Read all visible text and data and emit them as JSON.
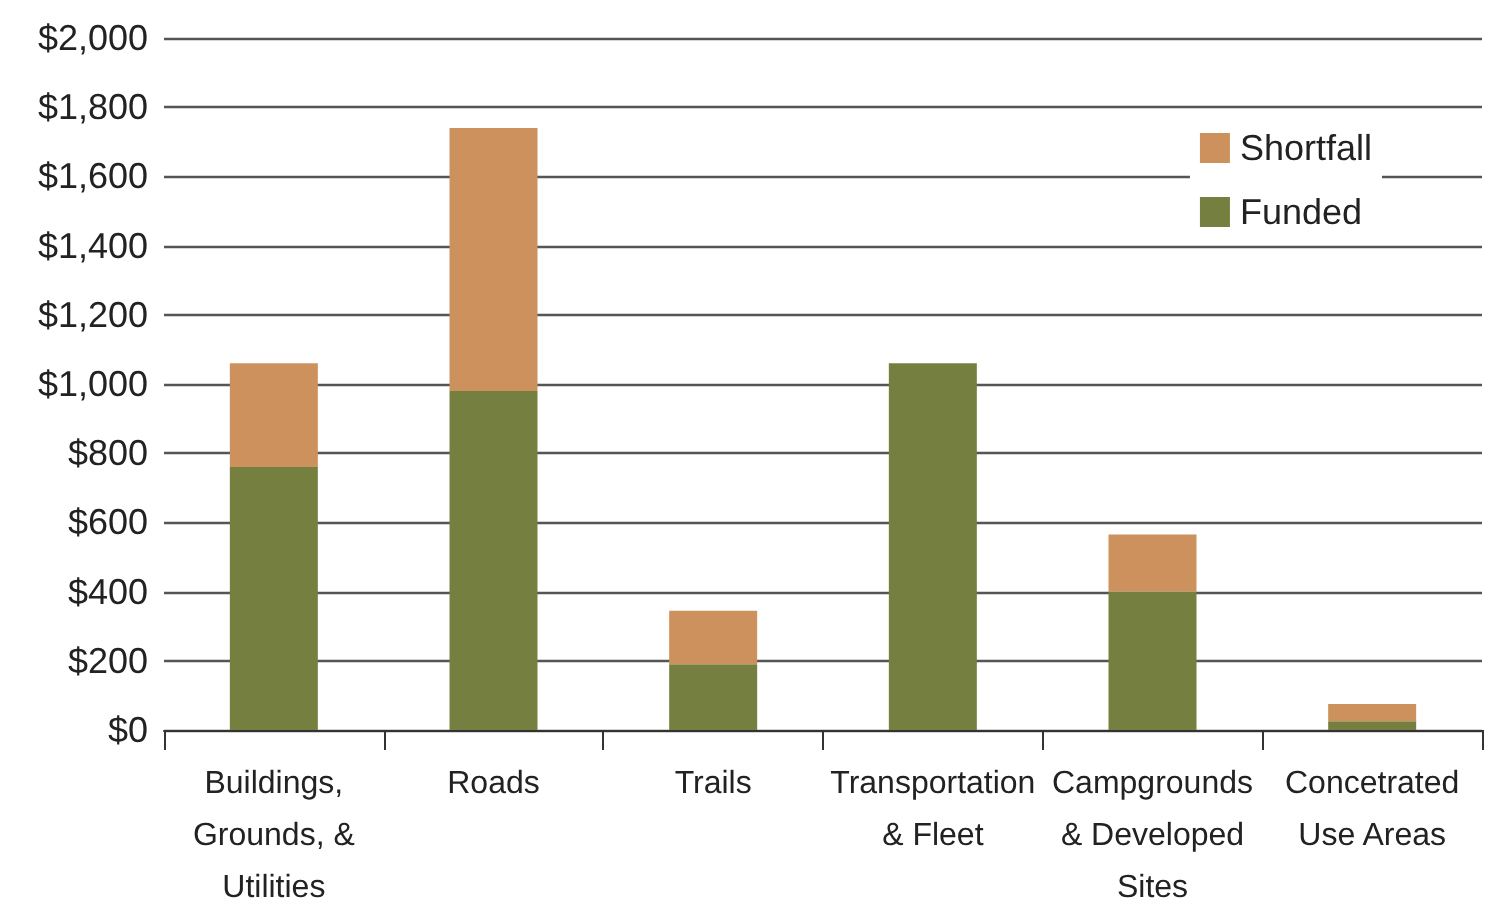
{
  "chart_data": {
    "type": "bar",
    "stacked": true,
    "categories": [
      "Buildings,\nGrounds, &\nUtilities",
      "Roads",
      "Trails",
      "Transportation\n& Fleet",
      "Campgrounds\n& Developed\nSites",
      "Concetrated\nUse Areas"
    ],
    "series": [
      {
        "name": "Funded",
        "color": "#758040",
        "values": [
          760,
          980,
          190,
          1060,
          400,
          25
        ]
      },
      {
        "name": "Shortfall",
        "color": "#cc915c",
        "values": [
          300,
          760,
          155,
          0,
          165,
          50
        ]
      }
    ],
    "ylim": [
      0,
      2000
    ],
    "yticks": [
      {
        "value": 0,
        "label": "$0"
      },
      {
        "value": 200,
        "label": "$200"
      },
      {
        "value": 400,
        "label": "$400"
      },
      {
        "value": 600,
        "label": "$600"
      },
      {
        "value": 800,
        "label": "$800"
      },
      {
        "value": 1000,
        "label": "$1,000"
      },
      {
        "value": 1200,
        "label": "$1,200"
      },
      {
        "value": 1400,
        "label": "$1,400"
      },
      {
        "value": 1600,
        "label": "$1,600"
      },
      {
        "value": 1800,
        "label": "$1,800"
      },
      {
        "value": 2000,
        "label": "$2,000"
      }
    ],
    "grid": "y",
    "legend": "top right"
  }
}
